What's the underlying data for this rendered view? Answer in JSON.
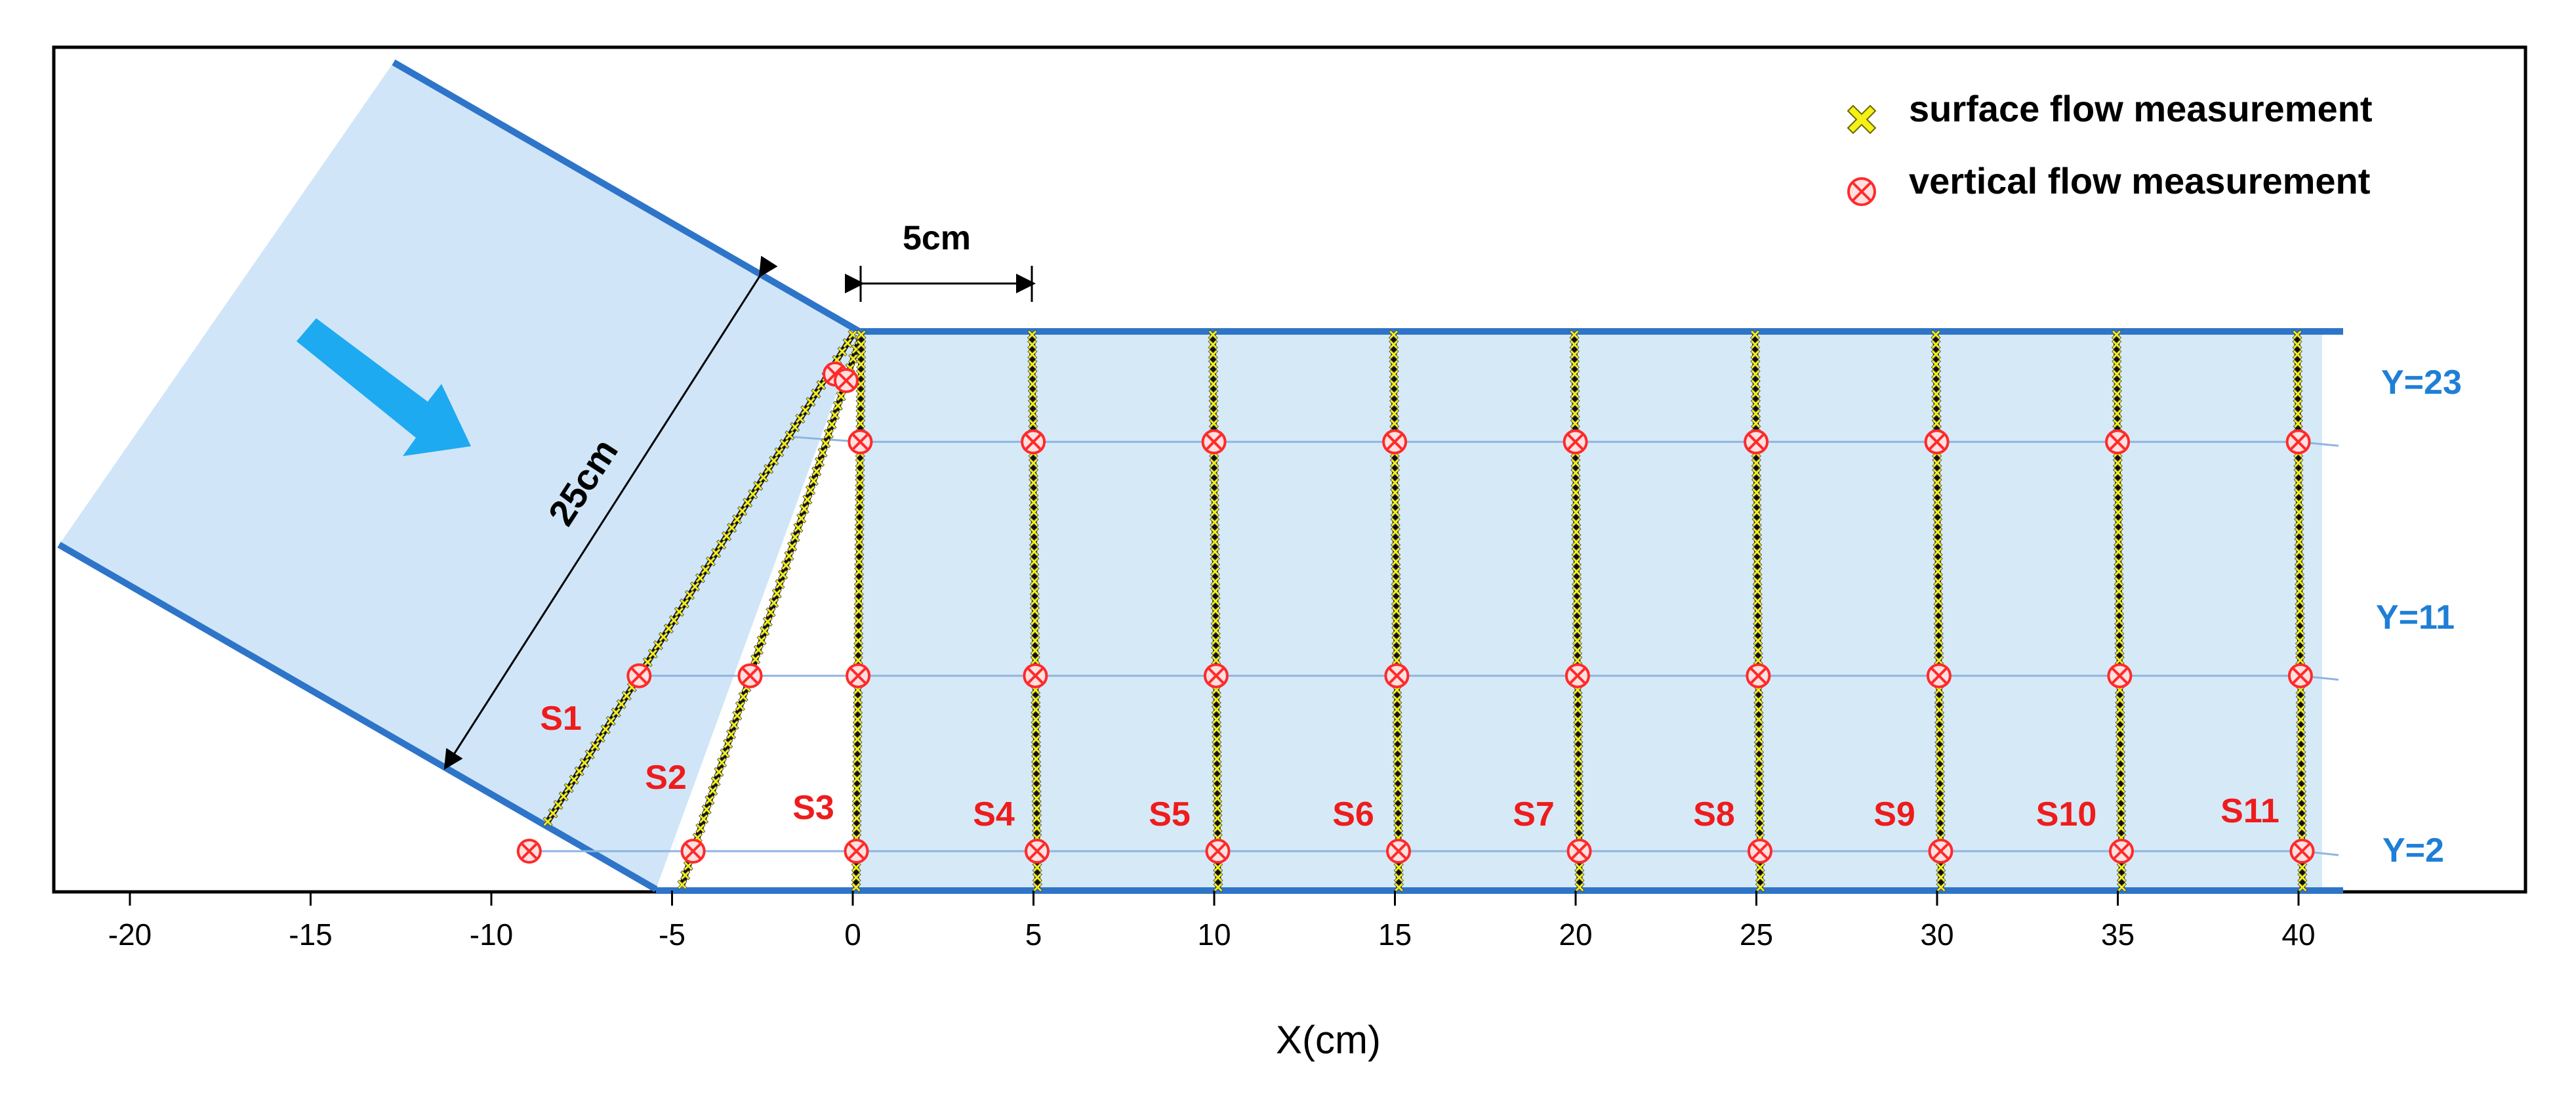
{
  "legend": {
    "surface_label": "surface flow measurement",
    "vertical_label": "vertical flow measurement"
  },
  "dimensions": {
    "spacing_label": "5cm",
    "width_label": "25cm"
  },
  "axis": {
    "xlabel": "X(cm)",
    "ticks": [
      "-20",
      "-15",
      "-10",
      "-5",
      "0",
      "5",
      "10",
      "15",
      "20",
      "25",
      "30",
      "35",
      "40"
    ],
    "tick_values": [
      -20,
      -15,
      -10,
      -5,
      0,
      5,
      10,
      15,
      20,
      25,
      30,
      35,
      40
    ]
  },
  "y_lines": [
    {
      "label": "Y=23",
      "value": 23
    },
    {
      "label": "Y=11",
      "value": 11
    },
    {
      "label": "Y=2",
      "value": 2
    }
  ],
  "sections": [
    {
      "label": "S1"
    },
    {
      "label": "S2"
    },
    {
      "label": "S3"
    },
    {
      "label": "S4"
    },
    {
      "label": "S5"
    },
    {
      "label": "S6"
    },
    {
      "label": "S7"
    },
    {
      "label": "S8"
    },
    {
      "label": "S9"
    },
    {
      "label": "S10"
    },
    {
      "label": "S11"
    }
  ],
  "colors": {
    "channel_fill": "#d6e9f7",
    "inlet_fill": "#d0e6f8",
    "wall": "#2e75c9",
    "arrow": "#1eaaf0",
    "surface_marker": "#f5f017",
    "vertical_marker": "#ff2a2a",
    "section_label": "#ee1c1c",
    "y_label": "#1f7fd6",
    "grid_line": "#8fb4e0"
  }
}
